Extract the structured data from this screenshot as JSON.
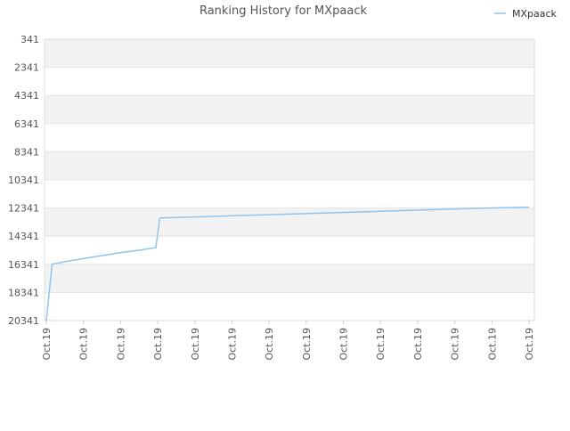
{
  "chart_data": {
    "type": "line",
    "title": "Ranking History for MXpaack",
    "legend_position": "top-right",
    "grid": true,
    "y_inverted": true,
    "y_ticks": [
      341,
      2341,
      4341,
      6341,
      8341,
      10341,
      12341,
      14341,
      16341,
      18341,
      20341
    ],
    "y_tick_labels": [
      "341",
      "2341",
      "4341",
      "6341",
      "8341",
      "10341",
      "12341",
      "14341",
      "16341",
      "18341",
      "20341"
    ],
    "ylim": [
      341,
      20341
    ],
    "x_tick_labels": [
      "Oct.19",
      "Oct.19",
      "Oct.19",
      "Oct.19",
      "Oct.19",
      "Oct.19",
      "Oct.19",
      "Oct.19",
      "Oct.19",
      "Oct.19",
      "Oct.19",
      "Oct.19",
      "Oct.19",
      "Oct.19"
    ],
    "colors": {
      "series": "#90c4ee",
      "band": "#f2f2f2",
      "grid": "#e4e4e4",
      "text": "#555555"
    },
    "series": [
      {
        "name": "MXpaack",
        "values": [
          20341,
          16341,
          16100,
          15900,
          15700,
          15500,
          15350,
          15150,
          13050,
          13000,
          12950,
          12900,
          12850,
          12800,
          12750,
          12700,
          12650,
          12600,
          12550,
          12500,
          12450,
          12400,
          12350,
          12310,
          12280
        ]
      }
    ]
  }
}
